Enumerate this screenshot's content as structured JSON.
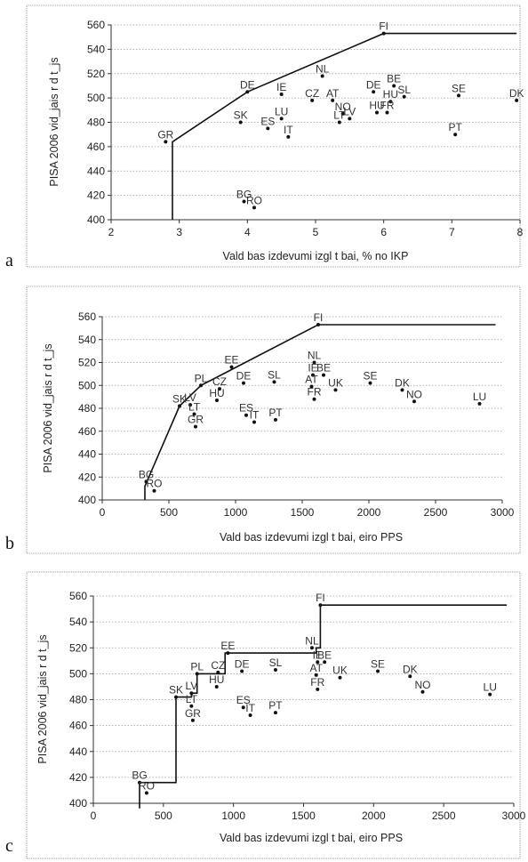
{
  "chart_data": [
    {
      "type": "scatter",
      "panel": "a",
      "xlabel": "Vald bas izdevumi izgl t bai, % no IKP",
      "ylabel": "PISA 2006 vid_jais r d t_js",
      "xlim": [
        2,
        8
      ],
      "ylim": [
        400,
        560
      ],
      "xticks": [
        2,
        3,
        4,
        5,
        6,
        7,
        8
      ],
      "yticks": [
        400,
        420,
        440,
        460,
        480,
        500,
        520,
        540,
        560
      ],
      "grid": "horizontal-dotted",
      "frontier": [
        [
          2.9,
          400
        ],
        [
          2.9,
          464
        ],
        [
          4.0,
          505
        ],
        [
          6.0,
          553
        ],
        [
          7.95,
          553
        ]
      ],
      "points": [
        {
          "label": "FI",
          "x": 6.0,
          "y": 553
        },
        {
          "label": "NL",
          "x": 5.1,
          "y": 518
        },
        {
          "label": "BE",
          "x": 6.15,
          "y": 510
        },
        {
          "label": "DE",
          "x": 4.0,
          "y": 505
        },
        {
          "label": "IE",
          "x": 4.5,
          "y": 503
        },
        {
          "label": "DE",
          "x": 5.85,
          "y": 505
        },
        {
          "label": "CZ",
          "x": 4.95,
          "y": 498
        },
        {
          "label": "AT",
          "x": 5.25,
          "y": 498
        },
        {
          "label": "HU",
          "x": 6.1,
          "y": 497
        },
        {
          "label": "SL",
          "x": 6.3,
          "y": 501
        },
        {
          "label": "SE",
          "x": 7.1,
          "y": 502
        },
        {
          "label": "DK",
          "x": 7.95,
          "y": 498
        },
        {
          "label": "NO",
          "x": 5.4,
          "y": 487
        },
        {
          "label": "HU",
          "x": 5.9,
          "y": 488
        },
        {
          "label": "FR",
          "x": 6.05,
          "y": 488
        },
        {
          "label": "LV",
          "x": 5.5,
          "y": 483
        },
        {
          "label": "LT",
          "x": 5.35,
          "y": 480
        },
        {
          "label": "SK",
          "x": 3.9,
          "y": 480
        },
        {
          "label": "LU",
          "x": 4.5,
          "y": 483
        },
        {
          "label": "ES",
          "x": 4.3,
          "y": 475
        },
        {
          "label": "IT",
          "x": 4.6,
          "y": 468
        },
        {
          "label": "PT",
          "x": 7.05,
          "y": 470
        },
        {
          "label": "GR",
          "x": 2.8,
          "y": 464
        },
        {
          "label": "BG",
          "x": 3.95,
          "y": 415
        },
        {
          "label": "RO",
          "x": 4.1,
          "y": 410
        }
      ]
    },
    {
      "type": "scatter",
      "panel": "b",
      "xlabel": "Vald bas izdevumi izgl t bai, eiro PPS",
      "ylabel": "PISA 2006 vid_jais r d t_js",
      "xlim": [
        0,
        3000
      ],
      "ylim": [
        400,
        560
      ],
      "xticks": [
        0,
        500,
        1000,
        1500,
        2000,
        2500,
        3000
      ],
      "yticks": [
        400,
        420,
        440,
        460,
        480,
        500,
        520,
        540,
        560
      ],
      "grid": "horizontal-dotted",
      "frontier": [
        [
          320,
          400
        ],
        [
          320,
          412
        ],
        [
          580,
          482
        ],
        [
          740,
          500
        ],
        [
          1620,
          553
        ],
        [
          2950,
          553
        ]
      ],
      "points": [
        {
          "label": "FI",
          "x": 1620,
          "y": 553
        },
        {
          "label": "EE",
          "x": 970,
          "y": 516
        },
        {
          "label": "NL",
          "x": 1590,
          "y": 520
        },
        {
          "label": "IE",
          "x": 1580,
          "y": 509
        },
        {
          "label": "BE",
          "x": 1660,
          "y": 509
        },
        {
          "label": "PL",
          "x": 740,
          "y": 500
        },
        {
          "label": "CZ",
          "x": 880,
          "y": 497
        },
        {
          "label": "DE",
          "x": 1060,
          "y": 502
        },
        {
          "label": "SL",
          "x": 1290,
          "y": 503
        },
        {
          "label": "AT",
          "x": 1570,
          "y": 499
        },
        {
          "label": "UK",
          "x": 1750,
          "y": 496
        },
        {
          "label": "SE",
          "x": 2010,
          "y": 502
        },
        {
          "label": "DK",
          "x": 2250,
          "y": 496
        },
        {
          "label": "HU",
          "x": 860,
          "y": 487
        },
        {
          "label": "FR",
          "x": 1590,
          "y": 488
        },
        {
          "label": "NO",
          "x": 2340,
          "y": 486
        },
        {
          "label": "LU",
          "x": 2830,
          "y": 484
        },
        {
          "label": "SK",
          "x": 580,
          "y": 482
        },
        {
          "label": "LV",
          "x": 660,
          "y": 483
        },
        {
          "label": "LT",
          "x": 690,
          "y": 475
        },
        {
          "label": "ES",
          "x": 1080,
          "y": 474
        },
        {
          "label": "IT",
          "x": 1140,
          "y": 468
        },
        {
          "label": "PT",
          "x": 1300,
          "y": 470
        },
        {
          "label": "GR",
          "x": 700,
          "y": 464
        },
        {
          "label": "BG",
          "x": 330,
          "y": 416
        },
        {
          "label": "RO",
          "x": 390,
          "y": 408
        }
      ]
    },
    {
      "type": "scatter",
      "panel": "c",
      "xlabel": "Vald bas izdevumi izgl t bai, eiro PPS",
      "ylabel": "PISA 2006 vid_jais r d t_js",
      "xlim": [
        0,
        3000
      ],
      "ylim": [
        400,
        560
      ],
      "xticks": [
        0,
        500,
        1000,
        1500,
        2000,
        2500,
        3000
      ],
      "yticks": [
        400,
        420,
        440,
        460,
        480,
        500,
        520,
        540,
        560
      ],
      "grid": "horizontal-dotted",
      "frontier": [
        [
          330,
          396
        ],
        [
          330,
          416
        ],
        [
          590,
          416
        ],
        [
          590,
          482
        ],
        [
          700,
          482
        ],
        [
          700,
          485
        ],
        [
          740,
          485
        ],
        [
          740,
          500
        ],
        [
          940,
          500
        ],
        [
          940,
          516
        ],
        [
          1590,
          516
        ],
        [
          1590,
          520
        ],
        [
          1620,
          520
        ],
        [
          1620,
          553
        ],
        [
          2950,
          553
        ]
      ],
      "points": [
        {
          "label": "FI",
          "x": 1620,
          "y": 553
        },
        {
          "label": "NL",
          "x": 1560,
          "y": 520
        },
        {
          "label": "EE",
          "x": 960,
          "y": 516
        },
        {
          "label": "IE",
          "x": 1600,
          "y": 509
        },
        {
          "label": "BE",
          "x": 1650,
          "y": 509
        },
        {
          "label": "PL",
          "x": 740,
          "y": 500
        },
        {
          "label": "CZ",
          "x": 890,
          "y": 501
        },
        {
          "label": "DE",
          "x": 1060,
          "y": 502
        },
        {
          "label": "SL",
          "x": 1300,
          "y": 503
        },
        {
          "label": "AT",
          "x": 1590,
          "y": 499
        },
        {
          "label": "UK",
          "x": 1760,
          "y": 497
        },
        {
          "label": "SE",
          "x": 2030,
          "y": 502
        },
        {
          "label": "DK",
          "x": 2260,
          "y": 498
        },
        {
          "label": "HU",
          "x": 880,
          "y": 490
        },
        {
          "label": "FR",
          "x": 1600,
          "y": 488
        },
        {
          "label": "NO",
          "x": 2350,
          "y": 486
        },
        {
          "label": "LU",
          "x": 2830,
          "y": 484
        },
        {
          "label": "LV",
          "x": 700,
          "y": 485
        },
        {
          "label": "SK",
          "x": 590,
          "y": 482
        },
        {
          "label": "LT",
          "x": 700,
          "y": 475
        },
        {
          "label": "ES",
          "x": 1070,
          "y": 474
        },
        {
          "label": "IT",
          "x": 1120,
          "y": 468
        },
        {
          "label": "PT",
          "x": 1300,
          "y": 470
        },
        {
          "label": "GR",
          "x": 710,
          "y": 464
        },
        {
          "label": "BG",
          "x": 330,
          "y": 416
        },
        {
          "label": "RO",
          "x": 380,
          "y": 408
        }
      ]
    }
  ],
  "panel_labels": [
    "a",
    "b",
    "c"
  ]
}
